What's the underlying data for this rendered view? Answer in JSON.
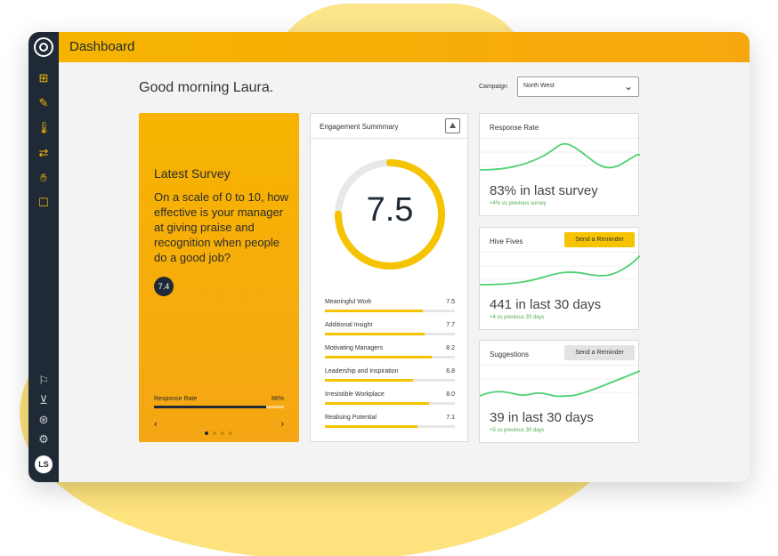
{
  "header": {
    "title": "Dashboard"
  },
  "sidebar": {
    "avatar_initials": "LS",
    "icons": [
      "dashboard-icon",
      "survey-icon",
      "thermometer-icon",
      "feedback-icon",
      "hands-icon",
      "chat-icon",
      "megaphone-icon",
      "download-icon",
      "support-icon",
      "settings-icon"
    ]
  },
  "greeting": "Good morning Laura.",
  "campaign": {
    "label": "Campaign",
    "value": "North West"
  },
  "survey": {
    "heading": "Latest Survey",
    "question": "On a scale of 0 to 10, how effective is your manager at giving praise and recognition when people do a good job?",
    "score": "7.4",
    "response_rate_label": "Response Rate",
    "response_rate_value": "86%",
    "response_rate_fraction": 0.86,
    "prev": "‹",
    "next": "›"
  },
  "engagement": {
    "title": "Engagement Summmary",
    "score": "7.5",
    "score_fraction": 0.75,
    "metrics": [
      {
        "label": "Meaningful Work",
        "value": "7.5",
        "fraction": 0.75
      },
      {
        "label": "Additional Insight",
        "value": "7.7",
        "fraction": 0.77
      },
      {
        "label": "Motivating Managers",
        "value": "8.2",
        "fraction": 0.82
      },
      {
        "label": "Leadership and Inspiration",
        "value": "6.8",
        "fraction": 0.68
      },
      {
        "label": "Irresistible Workplace",
        "value": "8.0",
        "fraction": 0.8
      },
      {
        "label": "Realising Potential",
        "value": "7.1",
        "fraction": 0.71
      }
    ]
  },
  "response_rate": {
    "title": "Response Rate",
    "headline": "83% in last survey",
    "delta": "+4% vs previous survey"
  },
  "hive_fives": {
    "title": "Hive Fives",
    "button": "Send a Reminder",
    "headline": "441 in last 30 days",
    "delta": "+4 vs previous 30 days"
  },
  "suggestions": {
    "title": "Suggestions",
    "button": "Send a Reminder",
    "headline": "39 in last 30 days",
    "delta": "+5 vs previous 30 days"
  },
  "colors": {
    "accent": "#f6b400",
    "sidebar": "#1f2a36",
    "trend_green": "#4caf50"
  }
}
